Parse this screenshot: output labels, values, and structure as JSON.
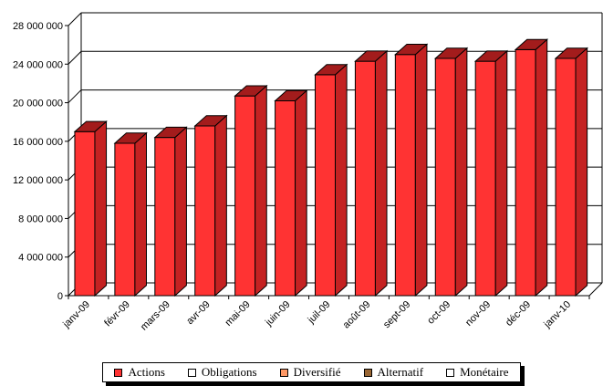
{
  "chart_data": {
    "type": "bar",
    "categories": [
      "janv-09",
      "févr-09",
      "mars-09",
      "avr-09",
      "mai-09",
      "juin-09",
      "juil-09",
      "août-09",
      "sept-09",
      "oct-09",
      "nov-09",
      "déc-09",
      "janv-10"
    ],
    "series": [
      {
        "name": "Actions",
        "values": [
          17000000,
          15800000,
          16400000,
          17600000,
          20700000,
          20200000,
          22900000,
          24300000,
          25000000,
          24600000,
          24300000,
          25500000,
          24600000
        ]
      }
    ],
    "ylim": [
      0,
      28000000
    ],
    "yticks": [
      0,
      4000000,
      8000000,
      12000000,
      16000000,
      20000000,
      24000000,
      28000000
    ],
    "ytick_labels": [
      "0",
      "4 000 000",
      "8 000 000",
      "12 000 000",
      "16 000 000",
      "20 000 000",
      "24 000 000",
      "28 000 000"
    ],
    "grid": true,
    "legend_position": "bottom",
    "legend": [
      {
        "label": "Actions",
        "color": "#ff3333"
      },
      {
        "label": "Obligations",
        "color": "#ffffff"
      },
      {
        "label": "Diversifié",
        "color": "#ff9966"
      },
      {
        "label": "Alternatif",
        "color": "#996633"
      },
      {
        "label": "Monétaire",
        "color": "#ffffff"
      }
    ],
    "colors": {
      "bar_front": "#ff3333",
      "bar_side": "#c42222",
      "bar_top": "#a31c1c"
    }
  }
}
